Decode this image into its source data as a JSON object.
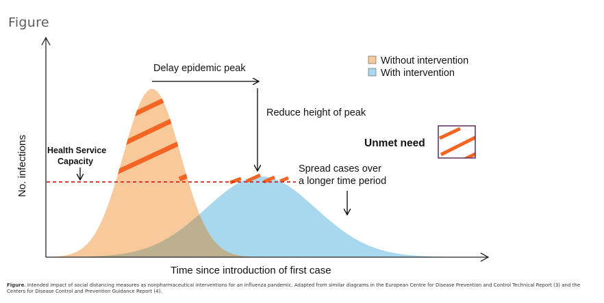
{
  "heading": "Figure",
  "chart_data": {
    "type": "area",
    "title": "",
    "xlabel": "Time since introduction of first case",
    "ylabel": "No. infections",
    "x_ticks_shown": false,
    "y_ticks_shown": false,
    "legend_placement": "top-right",
    "series": [
      {
        "name": "Without intervention",
        "color": "#f7c99b",
        "shape": "tall narrow bell curve",
        "relative_peak": 1.0,
        "relative_peak_time": 0.35
      },
      {
        "name": "With intervention",
        "color": "#a8d8ee",
        "shape": "low wide bell curve",
        "relative_peak": 0.47,
        "relative_peak_time": 0.6
      }
    ],
    "threshold_line": {
      "label_line1": "Health Service",
      "label_line2": "Capacity",
      "color": "#d42020",
      "style": "dashed"
    },
    "annotations": [
      {
        "text": "Delay epidemic peak"
      },
      {
        "text": "Reduce height of peak"
      },
      {
        "text_line1": "Spread cases over",
        "text_line2": "a longer time period"
      }
    ],
    "unmet_need": {
      "label": "Unmet need",
      "hatch_color": "#f26522"
    }
  },
  "caption": {
    "label": "Figure",
    "text": ". Intended impact of social distancing measures as nonpharmaceutical interventions for an influenza pandemic. Adapted from similar diagrams in the European Centre for Disease Prevention and Control Technical Report (3) and the Centers for Disease Control and Prevention Guidance Report (4)."
  }
}
